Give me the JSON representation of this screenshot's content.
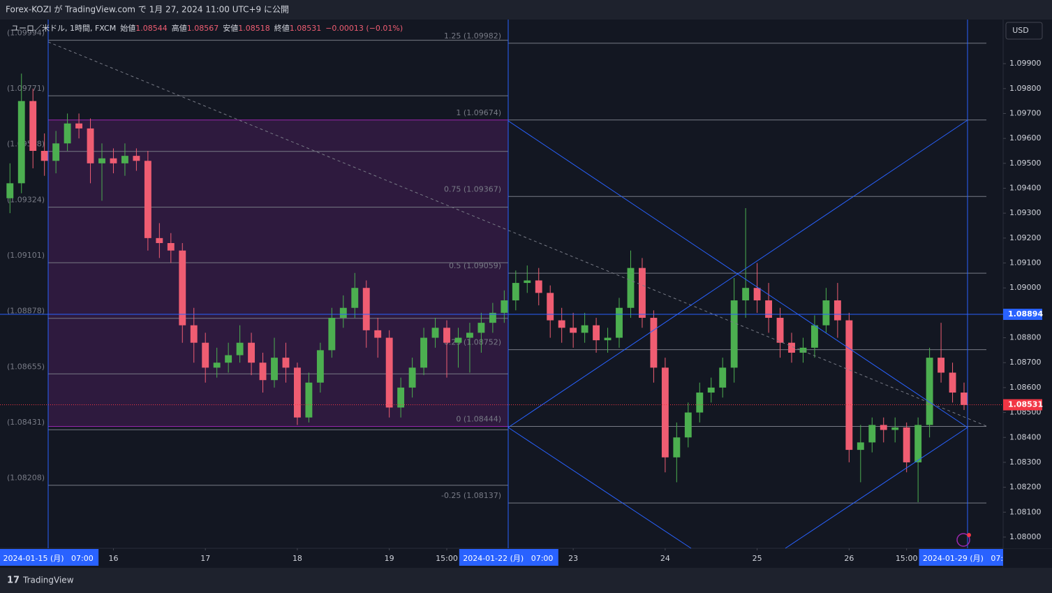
{
  "header": {
    "title": "Forex-KOZI が TradingView.com で 1月 27, 2024 11:00 UTC+9 に公開"
  },
  "chart_data": {
    "type": "candlestick",
    "title": "ユーロ／米ドル, 1時間, FXCM",
    "ohlc": [
      {
        "label": "始値",
        "value": 1.08544
      },
      {
        "label": "高値",
        "value": 1.08567
      },
      {
        "label": "安値",
        "value": 1.08518
      },
      {
        "label": "終値",
        "value": 1.08531
      }
    ],
    "change": "−0.00013 (−0.01%)",
    "currency": "USD",
    "up_color": "#4caf50",
    "down_color": "#ef5d72",
    "xlim": [
      -12.6,
      249.2
    ],
    "ylim": [
      1.07955,
      1.10077
    ],
    "yticks": [
      {
        "value": 1.08,
        "label": "1.08000"
      },
      {
        "value": 1.081,
        "label": "1.08100"
      },
      {
        "value": 1.082,
        "label": "1.08200"
      },
      {
        "value": 1.083,
        "label": "1.08300"
      },
      {
        "value": 1.084,
        "label": "1.08400"
      },
      {
        "value": 1.085,
        "label": "1.08500"
      },
      {
        "value": 1.086,
        "label": "1.08600"
      },
      {
        "value": 1.087,
        "label": "1.08700"
      },
      {
        "value": 1.088,
        "label": "1.08800"
      },
      {
        "value": 1.089,
        "label": "1.08900"
      },
      {
        "value": 1.09,
        "label": "1.09000"
      },
      {
        "value": 1.091,
        "label": "1.09100"
      },
      {
        "value": 1.092,
        "label": "1.09200"
      },
      {
        "value": 1.093,
        "label": "1.09300"
      },
      {
        "value": 1.094,
        "label": "1.09400"
      },
      {
        "value": 1.095,
        "label": "1.09500"
      },
      {
        "value": 1.096,
        "label": "1.09600"
      },
      {
        "value": 1.097,
        "label": "1.09700"
      },
      {
        "value": 1.098,
        "label": "1.09800"
      },
      {
        "value": 1.099,
        "label": "1.09900"
      }
    ],
    "xticks": [
      {
        "value": 0,
        "label": "2024-01-15 (月)   07:00",
        "highlight": true
      },
      {
        "value": 17,
        "label": "16"
      },
      {
        "value": 41,
        "label": "17"
      },
      {
        "value": 65,
        "label": "18"
      },
      {
        "value": 89,
        "label": "19"
      },
      {
        "value": 104,
        "label": "15:00"
      },
      {
        "value": 120,
        "label": "2024-01-22 (月)   07:00",
        "highlight": true
      },
      {
        "value": 137,
        "label": "23"
      },
      {
        "value": 161,
        "label": "24"
      },
      {
        "value": 185,
        "label": "25"
      },
      {
        "value": 209,
        "label": "26"
      },
      {
        "value": 224,
        "label": "15:00"
      },
      {
        "value": 240,
        "label": "2024-01-29 (月)   07:00",
        "highlight": true
      }
    ],
    "price_line": 1.08894,
    "last_price": 1.08531,
    "fib_left": {
      "box": [
        1.08444,
        1.09674
      ],
      "levels": [
        {
          "value": 1.09994,
          "label": "(1.09994)"
        },
        {
          "value": 1.09771,
          "label": "(1.09771)"
        },
        {
          "value": 1.09548,
          "label": "(1.09548)"
        },
        {
          "value": 1.09324,
          "label": "(1.09324)"
        },
        {
          "value": 1.09101,
          "label": "(1.09101)"
        },
        {
          "value": 1.08878,
          "label": "(1.08878)"
        },
        {
          "value": 1.08655,
          "label": "(1.08655)"
        },
        {
          "value": 1.08431,
          "label": "(1.08431)"
        },
        {
          "value": 1.08208,
          "label": "(1.08208)"
        }
      ]
    },
    "fib_right": {
      "levels": [
        {
          "value": 1.09982,
          "label": "1.25 (1.09982)"
        },
        {
          "value": 1.09674,
          "label": "1 (1.09674)"
        },
        {
          "value": 1.09367,
          "label": "0.75 (1.09367)"
        },
        {
          "value": 1.09059,
          "label": "0.5 (1.09059)"
        },
        {
          "value": 1.08752,
          "label": "0.25 (1.08752)"
        },
        {
          "value": 1.08444,
          "label": "0 (1.08444)"
        },
        {
          "value": 1.08137,
          "label": "-0.25 (1.08137)"
        }
      ]
    },
    "x": [
      -10,
      -7,
      -4,
      -1,
      2,
      5,
      8,
      11,
      14,
      17,
      20,
      23,
      26,
      29,
      32,
      35,
      38,
      41,
      44,
      47,
      50,
      53,
      56,
      59,
      62,
      65,
      68,
      71,
      74,
      77,
      80,
      83,
      86,
      89,
      92,
      95,
      98,
      101,
      104,
      107,
      110,
      113,
      116,
      119,
      122,
      125,
      128,
      131,
      134,
      137,
      140,
      143,
      146,
      149,
      152,
      155,
      158,
      161,
      164,
      167,
      170,
      173,
      176,
      179,
      182,
      185,
      188,
      191,
      194,
      197,
      200,
      203,
      206,
      209,
      212,
      215,
      218,
      221,
      224,
      227,
      230,
      233,
      236,
      239
    ],
    "open": [
      1.0936,
      1.0942,
      1.0975,
      1.0955,
      1.0951,
      1.0958,
      1.0966,
      1.0964,
      1.095,
      1.0952,
      1.095,
      1.0953,
      1.0951,
      1.092,
      1.0918,
      1.0915,
      1.0885,
      1.0878,
      1.0868,
      1.087,
      1.0873,
      1.0878,
      1.087,
      1.0863,
      1.0872,
      1.0868,
      1.0848,
      1.0862,
      1.0875,
      1.0888,
      1.0892,
      1.09,
      1.0883,
      1.088,
      1.0852,
      1.086,
      1.0868,
      1.088,
      1.0884,
      1.0878,
      1.088,
      1.0882,
      1.0886,
      1.089,
      1.0895,
      1.0902,
      1.0903,
      1.0898,
      1.0887,
      1.0884,
      1.0882,
      1.0885,
      1.0879,
      1.088,
      1.0892,
      1.0908,
      1.0888,
      1.0868,
      1.0832,
      1.084,
      1.085,
      1.0858,
      1.086,
      1.0868,
      1.0895,
      1.09,
      1.0895,
      1.0888,
      1.0878,
      1.0874,
      1.0876,
      1.0885,
      1.0895,
      1.0887,
      1.0835,
      1.0838,
      1.0845,
      1.0843,
      1.0844,
      1.083,
      1.0845,
      1.0872,
      1.0866,
      1.0858
    ],
    "high": [
      1.095,
      1.0986,
      1.098,
      1.0962,
      1.0963,
      1.097,
      1.097,
      1.0968,
      1.0958,
      1.0956,
      1.0958,
      1.0956,
      1.0955,
      1.0926,
      1.0922,
      1.0918,
      1.0892,
      1.0882,
      1.0876,
      1.0878,
      1.0885,
      1.0882,
      1.0874,
      1.088,
      1.0878,
      1.087,
      1.0866,
      1.0878,
      1.0892,
      1.0897,
      1.0906,
      1.0903,
      1.0888,
      1.0883,
      1.0864,
      1.0872,
      1.0884,
      1.0888,
      1.0887,
      1.0884,
      1.0886,
      1.089,
      1.0894,
      1.0899,
      1.0907,
      1.0909,
      1.0908,
      1.0901,
      1.0892,
      1.089,
      1.089,
      1.0888,
      1.0884,
      1.0896,
      1.0915,
      1.0912,
      1.0891,
      1.0872,
      1.0846,
      1.0854,
      1.0862,
      1.0864,
      1.0872,
      1.0904,
      1.0932,
      1.091,
      1.0902,
      1.0892,
      1.0882,
      1.088,
      1.0889,
      1.09,
      1.0902,
      1.089,
      1.0845,
      1.0848,
      1.0848,
      1.0848,
      1.0846,
      1.0848,
      1.0876,
      1.0886,
      1.087,
      1.0862
    ],
    "low": [
      1.093,
      1.0938,
      1.0948,
      1.0945,
      1.0946,
      1.0955,
      1.096,
      1.0942,
      1.0935,
      1.0946,
      1.0945,
      1.0947,
      1.0915,
      1.0912,
      1.091,
      1.0878,
      1.087,
      1.0862,
      1.0864,
      1.0866,
      1.087,
      1.0865,
      1.0858,
      1.086,
      1.0862,
      1.0845,
      1.0846,
      1.0858,
      1.0872,
      1.0884,
      1.0888,
      1.0876,
      1.0872,
      1.0848,
      1.0848,
      1.0856,
      1.0865,
      1.0876,
      1.0864,
      1.0868,
      1.0866,
      1.0874,
      1.0882,
      1.0886,
      1.0891,
      1.0898,
      1.0893,
      1.088,
      1.0878,
      1.0876,
      1.0878,
      1.0874,
      1.0874,
      1.0876,
      1.0888,
      1.0884,
      1.0862,
      1.0826,
      1.0822,
      1.0836,
      1.0846,
      1.0854,
      1.0856,
      1.0862,
      1.0888,
      1.089,
      1.0882,
      1.0872,
      1.087,
      1.087,
      1.0872,
      1.0882,
      1.088,
      1.083,
      1.0822,
      1.0834,
      1.0838,
      1.0838,
      1.0826,
      1.0814,
      1.084,
      1.0862,
      1.0854,
      1.0851
    ],
    "close": [
      1.0942,
      1.0975,
      1.0955,
      1.0951,
      1.0958,
      1.0966,
      1.0964,
      1.095,
      1.0952,
      1.095,
      1.0953,
      1.0951,
      1.092,
      1.0918,
      1.0915,
      1.0885,
      1.0878,
      1.0868,
      1.087,
      1.0873,
      1.0878,
      1.087,
      1.0863,
      1.0872,
      1.0868,
      1.0848,
      1.0862,
      1.0875,
      1.0888,
      1.0892,
      1.09,
      1.0883,
      1.088,
      1.0852,
      1.086,
      1.0868,
      1.088,
      1.0884,
      1.0878,
      1.088,
      1.0882,
      1.0886,
      1.089,
      1.0895,
      1.0902,
      1.0903,
      1.0898,
      1.0887,
      1.0884,
      1.0882,
      1.0885,
      1.0879,
      1.088,
      1.0892,
      1.0908,
      1.0888,
      1.0868,
      1.0832,
      1.084,
      1.085,
      1.0858,
      1.086,
      1.0868,
      1.0895,
      1.09,
      1.0895,
      1.0888,
      1.0878,
      1.0874,
      1.0876,
      1.0885,
      1.0895,
      1.0887,
      1.0835,
      1.0838,
      1.0845,
      1.0843,
      1.0844,
      1.083,
      1.0845,
      1.0872,
      1.0866,
      1.0858,
      1.0853
    ]
  },
  "brand": "TradingView"
}
